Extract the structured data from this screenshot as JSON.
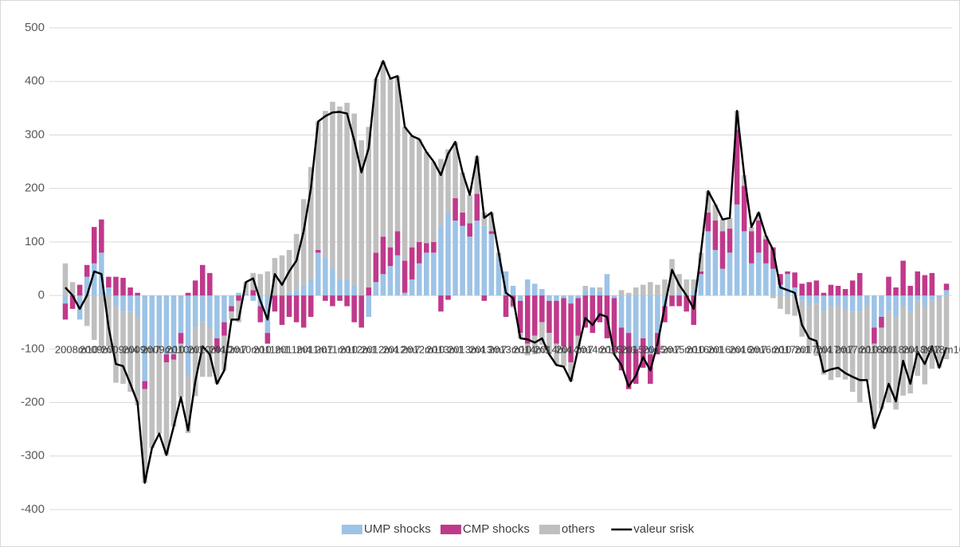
{
  "chart_data": {
    "type": "bar",
    "stacked": true,
    "categories": [
      "2008m10",
      null,
      null,
      "2009m1",
      null,
      null,
      "2009m4",
      null,
      null,
      "2009m7",
      null,
      null,
      "2009m10",
      null,
      null,
      "2010m1",
      null,
      null,
      "2010m4",
      null,
      null,
      "2010m7",
      null,
      null,
      "2010m10",
      null,
      null,
      "2011m1",
      null,
      null,
      "2011m4",
      null,
      null,
      "2011m7",
      null,
      null,
      "2011m10",
      null,
      null,
      "2012m1",
      null,
      null,
      "2012m4",
      null,
      null,
      "2012m7",
      null,
      null,
      "2012m10",
      null,
      null,
      "2013m1",
      null,
      null,
      "2013m4",
      null,
      null,
      "2013m7",
      null,
      null,
      "2013m10",
      null,
      null,
      "2014m1",
      null,
      null,
      "2014m4",
      null,
      null,
      "2014m7",
      null,
      null,
      "2014m10",
      null,
      null,
      "2015m1",
      null,
      null,
      "2015m4",
      null,
      null,
      "2015m7",
      null,
      null,
      "2015m10",
      null,
      null,
      "2016m1",
      null,
      null,
      "2016m4",
      null,
      null,
      "2016m7",
      null,
      null,
      "2016m10",
      null,
      null,
      "2017m1",
      null,
      null,
      "2017m4",
      null,
      null,
      "2017m7",
      null,
      null,
      "2017m10",
      null,
      null,
      "2018m1",
      null,
      null,
      "2018m4",
      null,
      null,
      "2018m7",
      null,
      null,
      "2018m10",
      null,
      null
    ],
    "series": [
      {
        "name": "UMP shocks",
        "type": "bar",
        "color": "#9dc3e6",
        "values": [
          -15,
          0,
          -45,
          35,
          60,
          80,
          15,
          -20,
          -30,
          -30,
          -40,
          -160,
          -100,
          -90,
          -110,
          -110,
          -70,
          -150,
          -60,
          -50,
          -60,
          -80,
          -50,
          -20,
          5,
          5,
          -10,
          -20,
          -70,
          0,
          0,
          5,
          10,
          20,
          30,
          80,
          70,
          50,
          30,
          30,
          20,
          0,
          -40,
          25,
          40,
          55,
          75,
          5,
          30,
          60,
          80,
          80,
          130,
          155,
          140,
          130,
          110,
          140,
          130,
          115,
          70,
          45,
          18,
          -10,
          30,
          22,
          12,
          -10,
          -10,
          -5,
          -15,
          -5,
          10,
          15,
          8,
          40,
          -5,
          -60,
          -70,
          -100,
          -80,
          -110,
          -70,
          -20,
          0,
          5,
          0,
          10,
          40,
          120,
          85,
          50,
          80,
          170,
          120,
          60,
          80,
          60,
          50,
          20,
          40,
          15,
          -10,
          -20,
          -15,
          -30,
          -20,
          -20,
          -25,
          -30,
          -30,
          -20,
          -60,
          -40,
          -30,
          -40,
          -20,
          -30,
          -10,
          -20,
          -10,
          -5,
          10
        ]
      },
      {
        "name": "CMP shocks",
        "type": "bar",
        "color": "#c0398b",
        "values": [
          -30,
          -25,
          20,
          22,
          68,
          62,
          20,
          35,
          33,
          15,
          5,
          -15,
          0,
          0,
          -15,
          -10,
          -20,
          5,
          28,
          57,
          42,
          -25,
          -25,
          -10,
          -10,
          0,
          10,
          -30,
          -20,
          -30,
          -55,
          -40,
          -50,
          -60,
          -40,
          5,
          -10,
          -20,
          -10,
          -20,
          -50,
          -60,
          15,
          55,
          70,
          35,
          45,
          60,
          60,
          40,
          18,
          20,
          -30,
          -8,
          42,
          25,
          25,
          50,
          -10,
          5,
          0,
          -40,
          -20,
          -60,
          -90,
          -75,
          -50,
          -60,
          -80,
          -90,
          -110,
          -70,
          -60,
          -70,
          -50,
          -80,
          -100,
          -80,
          -105,
          -65,
          -55,
          -55,
          -40,
          -30,
          -20,
          -20,
          -30,
          -55,
          5,
          35,
          55,
          70,
          45,
          140,
          85,
          60,
          60,
          45,
          40,
          20,
          5,
          28,
          22,
          25,
          28,
          5,
          20,
          18,
          12,
          28,
          42,
          0,
          -30,
          -20,
          35,
          15,
          65,
          18,
          45,
          38,
          42,
          0,
          12
        ]
      },
      {
        "name": "others",
        "type": "bar",
        "color": "#bfbfbf",
        "values": [
          60,
          25,
          0,
          -57,
          -83,
          -102,
          -95,
          -143,
          -135,
          -150,
          -165,
          -175,
          -185,
          -168,
          -173,
          -125,
          -100,
          -107,
          -128,
          -102,
          -92,
          -60,
          -65,
          -15,
          -40,
          20,
          32,
          40,
          45,
          70,
          75,
          80,
          105,
          160,
          210,
          240,
          275,
          312,
          323,
          330,
          320,
          290,
          300,
          325,
          328,
          315,
          290,
          250,
          208,
          192,
          170,
          150,
          125,
          118,
          105,
          75,
          53,
          70,
          25,
          35,
          10,
          0,
          -3,
          -10,
          -22,
          -35,
          -42,
          -40,
          -40,
          -38,
          -35,
          -25,
          8,
          0,
          7,
          0,
          -5,
          10,
          5,
          15,
          20,
          25,
          20,
          30,
          68,
          35,
          30,
          20,
          35,
          40,
          30,
          22,
          20,
          35,
          20,
          8,
          15,
          7,
          -5,
          -25,
          -35,
          -38,
          -67,
          -85,
          -98,
          -118,
          -138,
          -133,
          -132,
          -150,
          -170,
          -138,
          -158,
          -152,
          -170,
          -173,
          -167,
          -153,
          -140,
          -146,
          -127,
          -130,
          -119
        ]
      },
      {
        "name": "valeur srisk",
        "type": "line",
        "color": "#000000",
        "values": [
          15,
          0,
          -25,
          0,
          45,
          40,
          -60,
          -128,
          -132,
          -165,
          -200,
          -350,
          -285,
          -258,
          -298,
          -245,
          -190,
          -252,
          -160,
          -95,
          -110,
          -165,
          -140,
          -45,
          -45,
          25,
          32,
          -10,
          -45,
          40,
          20,
          45,
          65,
          120,
          200,
          325,
          335,
          342,
          343,
          340,
          290,
          230,
          275,
          405,
          438,
          405,
          410,
          315,
          298,
          292,
          268,
          250,
          225,
          265,
          287,
          230,
          188,
          260,
          145,
          155,
          80,
          5,
          -5,
          -80,
          -82,
          -88,
          -80,
          -110,
          -130,
          -133,
          -160,
          -100,
          -42,
          -55,
          -35,
          -40,
          -110,
          -130,
          -170,
          -150,
          -115,
          -140,
          -90,
          -20,
          48,
          20,
          0,
          -25,
          80,
          195,
          170,
          142,
          145,
          345,
          225,
          128,
          155,
          112,
          85,
          15,
          10,
          5,
          -55,
          -80,
          -85,
          -143,
          -138,
          -135,
          -145,
          -152,
          -158,
          -158,
          -248,
          -212,
          -165,
          -198,
          -122,
          -165,
          -105,
          -128,
          -95,
          -135,
          -97
        ]
      }
    ],
    "ylim": [
      -400,
      500
    ],
    "yticks": [
      -400,
      -300,
      -200,
      -100,
      0,
      100,
      200,
      300,
      400,
      500
    ],
    "grid": true,
    "legend": "bottom"
  }
}
